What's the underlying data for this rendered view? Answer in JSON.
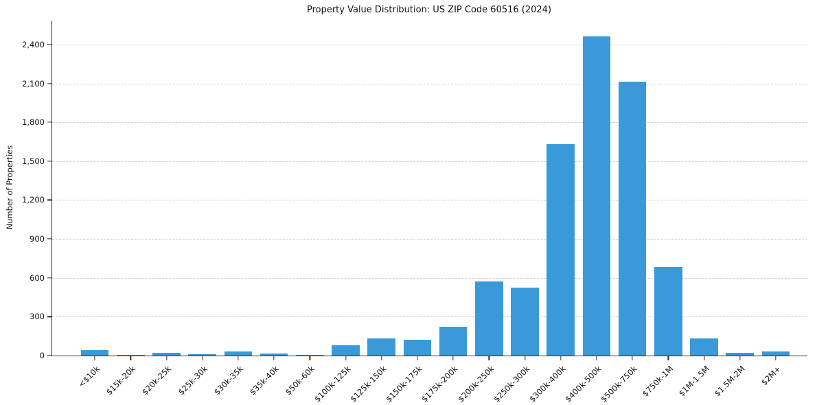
{
  "chart_data": {
    "type": "bar",
    "title": "Property Value Distribution: US ZIP Code 60516 (2024)",
    "xlabel": "",
    "ylabel": "Number of Properties",
    "categories": [
      "<$10k",
      "$15k-20k",
      "$20k-25k",
      "$25k-30k",
      "$30k-35k",
      "$35k-40k",
      "$50k-60k",
      "$100k-125k",
      "$125k-150k",
      "$150k-175k",
      "$175k-200k",
      "$200k-250k",
      "$250k-300k",
      "$300k-400k",
      "$400k-500k",
      "$500k-750k",
      "$750k-1M",
      "$1M-1.5M",
      "$1.5M-2M",
      "$2M+"
    ],
    "values": [
      45,
      8,
      22,
      10,
      32,
      18,
      3,
      78,
      135,
      122,
      225,
      570,
      525,
      1630,
      2465,
      2115,
      685,
      132,
      20,
      30
    ],
    "yticks": [
      0,
      300,
      600,
      900,
      1200,
      1500,
      1800,
      2100,
      2400
    ],
    "ylim": [
      0,
      2585
    ],
    "grid": "horizontal-dashed",
    "legend": null,
    "colors": {
      "bar": "#3a9ad9",
      "grid": "#cccccc",
      "axis": "#2b2b2b",
      "background": "#ffffff"
    }
  }
}
